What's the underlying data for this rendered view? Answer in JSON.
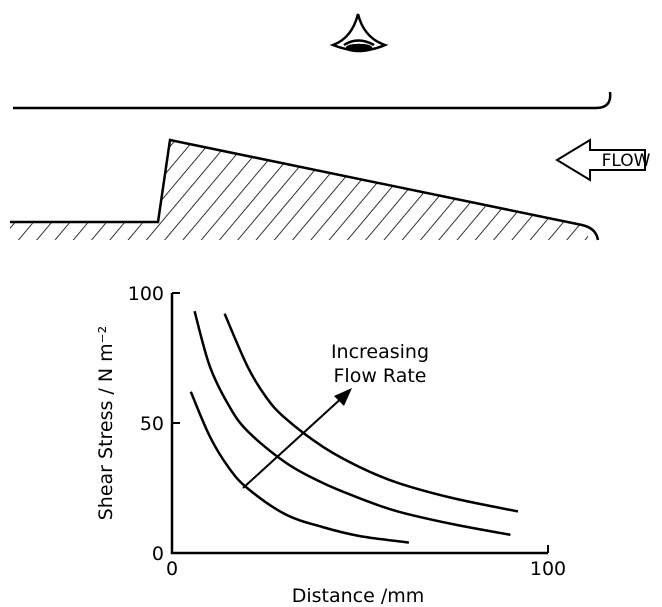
{
  "diagram": {
    "flow_label": "FLOW"
  },
  "chart_data": {
    "type": "line",
    "ylabel": "Shear Stress / N m⁻²",
    "xlabel": "Distance /mm",
    "annotations": [
      "Increasing",
      "Flow Rate"
    ],
    "xlim": [
      0,
      100
    ],
    "xticks": [
      0,
      100
    ],
    "ylim": [
      0,
      100
    ],
    "yticks": [
      0,
      50,
      100
    ],
    "series": [
      {
        "color": "#000000",
        "x": [
          5,
          10,
          15,
          20,
          30,
          40,
          50,
          63
        ],
        "values": [
          62,
          45,
          33,
          25,
          15,
          10,
          6.5,
          4
        ]
      },
      {
        "color": "#000000",
        "x": [
          6,
          10,
          15,
          20,
          30,
          40,
          50,
          60,
          75,
          90
        ],
        "values": [
          93,
          72,
          57,
          47,
          35,
          27,
          21,
          16,
          11,
          7
        ]
      },
      {
        "color": "#000000",
        "x": [
          14,
          20,
          25,
          30,
          40,
          50,
          60,
          75,
          92
        ],
        "values": [
          92,
          72,
          60,
          52,
          41,
          33,
          27,
          21,
          16
        ]
      }
    ]
  }
}
